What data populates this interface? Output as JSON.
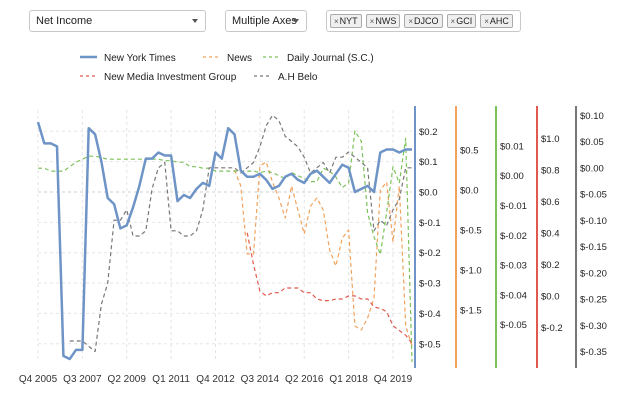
{
  "controls": {
    "metric": "Net Income",
    "axes_mode": "Multiple Axes",
    "tickers": [
      "NYT",
      "NWS",
      "DJCO",
      "GCI",
      "AHC"
    ]
  },
  "chart_data": {
    "type": "line",
    "x_tick_labels": [
      "Q4 2005",
      "Q3 2007",
      "Q2 2009",
      "Q1 2011",
      "Q4 2012",
      "Q3 2014",
      "Q2 2016",
      "Q1 2018",
      "Q4 2019"
    ],
    "x_tick_positions": [
      0,
      7,
      14,
      21,
      28,
      35,
      42,
      49,
      56
    ],
    "grid": true,
    "legend_position": "top",
    "series": [
      {
        "name": "New York Times",
        "color": "#6e94c7",
        "dash": false,
        "width": 2.5,
        "axis": {
          "ylim": [
            -0.56,
            0.27
          ],
          "ticks": [
            0.2,
            0.1,
            0.0,
            -0.1,
            -0.2,
            -0.3,
            -0.4,
            -0.5
          ],
          "tick_labels": [
            "$0.2",
            "$0.1",
            "$0.0",
            "$-0.1",
            "$-0.2",
            "$-0.3",
            "$-0.4",
            "$-0.5"
          ]
        },
        "values": [
          [
            0,
            0.23
          ],
          [
            1,
            0.16
          ],
          [
            2,
            0.16
          ],
          [
            3,
            0.15
          ],
          [
            4,
            -0.54
          ],
          [
            5,
            -0.55
          ],
          [
            6,
            -0.52
          ],
          [
            7,
            -0.52
          ],
          [
            8,
            0.21
          ],
          [
            9,
            0.19
          ],
          [
            10,
            0.1
          ],
          [
            11,
            -0.02
          ],
          [
            12,
            -0.04
          ],
          [
            13,
            -0.12
          ],
          [
            14,
            -0.11
          ],
          [
            15,
            -0.05
          ],
          [
            16,
            0.02
          ],
          [
            17,
            0.11
          ],
          [
            18,
            0.11
          ],
          [
            19,
            0.13
          ],
          [
            20,
            0.12
          ],
          [
            21,
            0.12
          ],
          [
            22,
            -0.03
          ],
          [
            23,
            -0.01
          ],
          [
            24,
            -0.02
          ],
          [
            25,
            0.01
          ],
          [
            26,
            0.03
          ],
          [
            27,
            0.02
          ],
          [
            28,
            0.13
          ],
          [
            29,
            0.11
          ],
          [
            30,
            0.21
          ],
          [
            31,
            0.19
          ],
          [
            32,
            0.07
          ],
          [
            33,
            0.05
          ],
          [
            34,
            0.05
          ],
          [
            35,
            0.06
          ],
          [
            36,
            0.04
          ],
          [
            37,
            0.01
          ],
          [
            38,
            0.02
          ],
          [
            39,
            0.05
          ],
          [
            40,
            0.06
          ],
          [
            41,
            0.04
          ],
          [
            42,
            0.03
          ],
          [
            43,
            0.06
          ],
          [
            44,
            0.07
          ],
          [
            45,
            0.05
          ],
          [
            46,
            0.03
          ],
          [
            47,
            0.06
          ],
          [
            48,
            0.09
          ],
          [
            49,
            0.08
          ],
          [
            50,
            0.0
          ],
          [
            51,
            0.01
          ],
          [
            52,
            0.02
          ],
          [
            53,
            0.0
          ],
          [
            54,
            0.13
          ],
          [
            55,
            0.14
          ],
          [
            56,
            0.14
          ],
          [
            57,
            0.13
          ],
          [
            58,
            0.14
          ],
          [
            59,
            0.14
          ]
        ]
      },
      {
        "name": "News",
        "color": "#f0a35e",
        "dash": true,
        "width": 1.2,
        "axis": {
          "ylim": [
            -2.15,
            1.0
          ],
          "ticks": [
            0.5,
            0.0,
            -0.5,
            -1.0,
            -1.5
          ],
          "tick_labels": [
            "$0.5",
            "$0.0",
            "$-0.5",
            "$-1.0",
            "$-1.5"
          ]
        },
        "values": [
          [
            31,
            0.25
          ],
          [
            32,
            0.05
          ],
          [
            33,
            -0.8
          ],
          [
            34,
            -0.8
          ],
          [
            35,
            0.3
          ],
          [
            36,
            0.35
          ],
          [
            37,
            0.1
          ],
          [
            38,
            -0.1
          ],
          [
            39,
            -0.35
          ],
          [
            40,
            0.05
          ],
          [
            41,
            -0.25
          ],
          [
            42,
            -0.55
          ],
          [
            43,
            -0.2
          ],
          [
            44,
            -0.1
          ],
          [
            45,
            -0.25
          ],
          [
            46,
            -0.75
          ],
          [
            47,
            -0.95
          ],
          [
            48,
            -0.6
          ],
          [
            49,
            -0.5
          ],
          [
            50,
            -1.7
          ],
          [
            51,
            -1.75
          ],
          [
            52,
            -1.6
          ],
          [
            53,
            -1.35
          ],
          [
            54,
            0.0
          ],
          [
            55,
            0.1
          ],
          [
            56,
            -0.65
          ],
          [
            57,
            0.05
          ],
          [
            58,
            -1.7
          ],
          [
            59,
            -1.95
          ]
        ]
      },
      {
        "name": "Daily Journal (S.C.)",
        "color": "#7cc25a",
        "dash": true,
        "width": 1.2,
        "axis": {
          "ylim": [
            -0.0625,
            0.022
          ],
          "ticks": [
            0.01,
            0.0,
            -0.01,
            -0.02,
            -0.03,
            -0.04,
            -0.05
          ],
          "tick_labels": [
            "$0.01",
            "$0.00",
            "$-0.01",
            "$-0.02",
            "$-0.03",
            "$-0.04",
            "$-0.05"
          ]
        },
        "values": [
          [
            0,
            0.0025
          ],
          [
            1,
            0.0025
          ],
          [
            2,
            0.0015
          ],
          [
            3,
            0.0015
          ],
          [
            4,
            0.0015
          ],
          [
            5,
            0.003
          ],
          [
            6,
            0.0045
          ],
          [
            7,
            0.0055
          ],
          [
            8,
            0.0065
          ],
          [
            9,
            0.0065
          ],
          [
            10,
            0.006
          ],
          [
            11,
            0.0055
          ],
          [
            12,
            0.0055
          ],
          [
            13,
            0.0055
          ],
          [
            14,
            0.0055
          ],
          [
            15,
            0.0055
          ],
          [
            16,
            0.0055
          ],
          [
            17,
            0.0055
          ],
          [
            18,
            0.0055
          ],
          [
            19,
            0.0055
          ],
          [
            20,
            0.005
          ],
          [
            21,
            0.005
          ],
          [
            22,
            0.0045
          ],
          [
            23,
            0.0045
          ],
          [
            24,
            0.003
          ],
          [
            25,
            0.003
          ],
          [
            26,
            0.0025
          ],
          [
            27,
            0.0025
          ],
          [
            28,
            0.0015
          ],
          [
            29,
            0.0015
          ],
          [
            30,
            0.0015
          ],
          [
            31,
            0.0015
          ],
          [
            32,
            0.0015
          ],
          [
            33,
            0.0015
          ],
          [
            34,
            0.0015
          ],
          [
            35,
            0.001
          ],
          [
            36,
            0.0015
          ],
          [
            37,
            0.001
          ],
          [
            38,
            0.0
          ],
          [
            39,
            -0.001
          ],
          [
            40,
            0.001
          ],
          [
            41,
            0.0
          ],
          [
            42,
            -0.001
          ],
          [
            43,
            -0.002
          ],
          [
            44,
            -0.002
          ],
          [
            45,
            0.0025
          ],
          [
            46,
            0.0015
          ],
          [
            47,
            -0.0005
          ],
          [
            48,
            -0.004
          ],
          [
            49,
            -0.0025
          ],
          [
            50,
            0.015
          ],
          [
            51,
            0.0115
          ],
          [
            52,
            -0.0125
          ],
          [
            53,
            -0.0205
          ],
          [
            54,
            -0.0265
          ],
          [
            55,
            -0.0125
          ],
          [
            56,
            0.003
          ],
          [
            57,
            -0.0025
          ],
          [
            58,
            0.0125
          ],
          [
            59,
            -0.0625
          ]
        ]
      },
      {
        "name": "New Media Investment Group",
        "color": "#e05a4e",
        "dash": true,
        "width": 1.2,
        "axis": {
          "ylim": [
            -0.42,
            1.18
          ],
          "ticks": [
            1.0,
            0.8,
            0.6,
            0.4,
            0.2,
            0.0,
            -0.2
          ],
          "tick_labels": [
            "$1.0",
            "$0.8",
            "$0.6",
            "$0.4",
            "$0.2",
            "$0.0",
            "$-0.2"
          ]
        },
        "values": [
          [
            33,
            0.4
          ],
          [
            34,
            0.2
          ],
          [
            35,
            0.03
          ],
          [
            36,
            0.0
          ],
          [
            37,
            0.02
          ],
          [
            38,
            0.02
          ],
          [
            39,
            0.05
          ],
          [
            40,
            0.05
          ],
          [
            41,
            0.05
          ],
          [
            42,
            0.02
          ],
          [
            43,
            0.02
          ],
          [
            44,
            -0.02
          ],
          [
            45,
            -0.03
          ],
          [
            46,
            -0.03
          ],
          [
            47,
            -0.02
          ],
          [
            48,
            -0.02
          ],
          [
            49,
            0.0
          ],
          [
            50,
            0.0
          ],
          [
            51,
            -0.02
          ],
          [
            52,
            -0.02
          ],
          [
            53,
            -0.07
          ],
          [
            54,
            -0.08
          ],
          [
            55,
            -0.1
          ],
          [
            56,
            -0.19
          ],
          [
            57,
            -0.22
          ],
          [
            58,
            -0.25
          ],
          [
            59,
            -0.3
          ]
        ]
      },
      {
        "name": "A.H Belo",
        "color": "#777777",
        "dash": true,
        "width": 1.2,
        "axis": {
          "ylim": [
            -0.37,
            0.11
          ],
          "ticks": [
            0.1,
            0.05,
            0.0,
            -0.05,
            -0.1,
            -0.15,
            -0.2,
            -0.25,
            -0.3,
            -0.35
          ],
          "tick_labels": [
            "$0.10",
            "$0.05",
            "$0.00",
            "$-0.05",
            "$-0.10",
            "$-0.15",
            "$-0.20",
            "$-0.25",
            "$-0.30",
            "$-0.35"
          ]
        },
        "values": [
          [
            5,
            -0.33
          ],
          [
            6,
            -0.33
          ],
          [
            7,
            -0.33
          ],
          [
            8,
            -0.34
          ],
          [
            9,
            -0.35
          ],
          [
            10,
            -0.26
          ],
          [
            11,
            -0.22
          ],
          [
            12,
            -0.1
          ],
          [
            13,
            -0.1
          ],
          [
            14,
            -0.08
          ],
          [
            15,
            -0.13
          ],
          [
            16,
            -0.13
          ],
          [
            17,
            -0.12
          ],
          [
            18,
            -0.04
          ],
          [
            19,
            0.0
          ],
          [
            20,
            0.01
          ],
          [
            21,
            -0.12
          ],
          [
            22,
            -0.12
          ],
          [
            23,
            -0.13
          ],
          [
            24,
            -0.13
          ],
          [
            25,
            -0.12
          ],
          [
            26,
            -0.08
          ],
          [
            27,
            0.0
          ],
          [
            28,
            0.0
          ],
          [
            29,
            0.0
          ],
          [
            30,
            0.0
          ],
          [
            31,
            0.0
          ],
          [
            32,
            -0.01
          ],
          [
            33,
            0.0
          ],
          [
            34,
            0.01
          ],
          [
            35,
            0.04
          ],
          [
            36,
            0.08
          ],
          [
            37,
            0.1
          ],
          [
            38,
            0.09
          ],
          [
            39,
            0.06
          ],
          [
            40,
            0.05
          ],
          [
            41,
            0.04
          ],
          [
            42,
            0.02
          ],
          [
            43,
            -0.01
          ],
          [
            44,
            0.0
          ],
          [
            45,
            0.01
          ],
          [
            46,
            -0.01
          ],
          [
            47,
            0.02
          ],
          [
            48,
            0.02
          ],
          [
            49,
            0.03
          ],
          [
            50,
            0.02
          ],
          [
            51,
            0.01
          ],
          [
            52,
            0.0
          ],
          [
            53,
            -0.12
          ],
          [
            54,
            -0.1
          ],
          [
            55,
            -0.11
          ],
          [
            56,
            -0.08
          ],
          [
            57,
            -0.06
          ],
          [
            58,
            0.0
          ],
          [
            59,
            0.0
          ]
        ]
      }
    ]
  }
}
